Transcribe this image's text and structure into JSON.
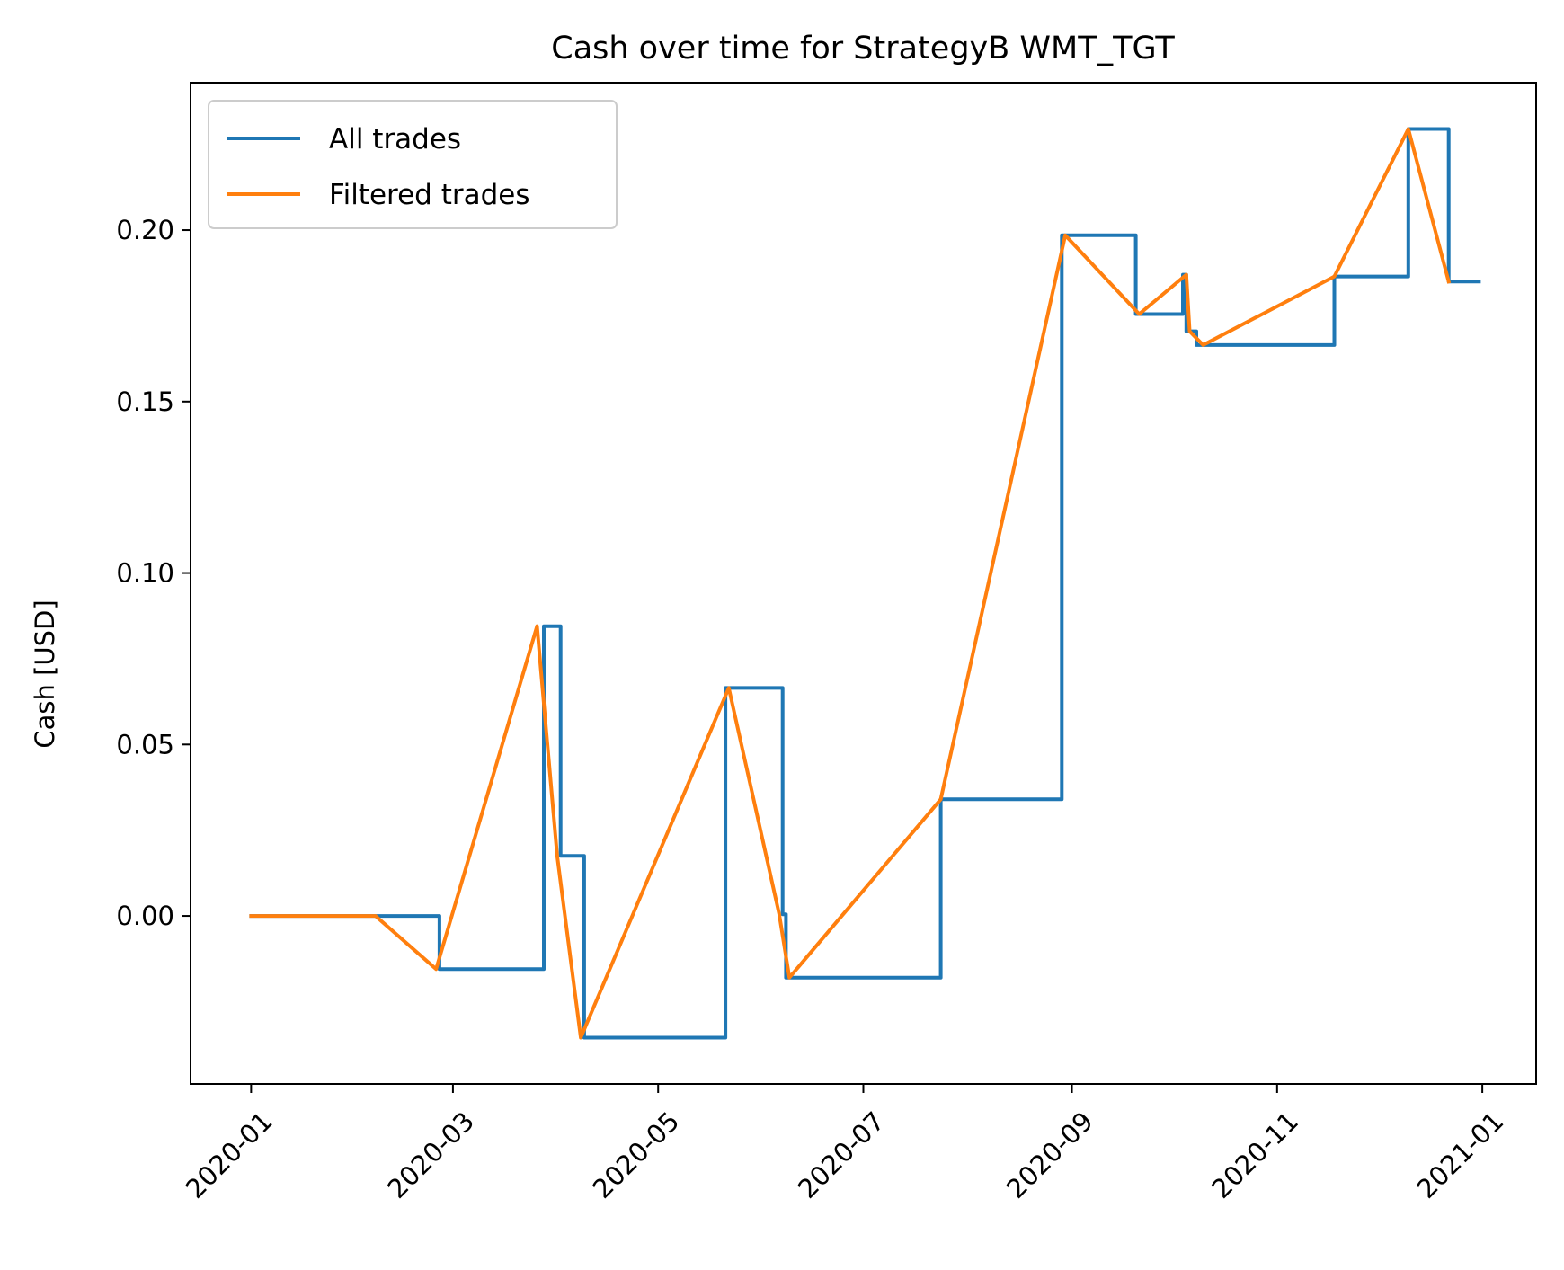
{
  "chart_data": {
    "type": "line",
    "title": "Cash over time for StrategyB WMT_TGT",
    "xlabel": "",
    "ylabel": "Cash [USD]",
    "xlim": [
      "2019-12-14",
      "2021-01-17"
    ],
    "ylim": [
      -0.049,
      0.243
    ],
    "x_ticks": [
      "2020-01",
      "2020-03",
      "2020-05",
      "2020-07",
      "2020-09",
      "2020-11",
      "2021-01"
    ],
    "y_ticks": [
      0.0,
      0.05,
      0.1,
      0.15,
      0.2
    ],
    "y_tick_labels": [
      "0.00",
      "0.05",
      "0.10",
      "0.15",
      "0.20"
    ],
    "grid": false,
    "legend_position": "top-left",
    "series": [
      {
        "name": "All trades",
        "color": "#1f77b4",
        "step": true,
        "points": [
          [
            "2020-01-01",
            0.0
          ],
          [
            "2020-02-25",
            0.0
          ],
          [
            "2020-02-26",
            -0.0155
          ],
          [
            "2020-03-27",
            -0.0155
          ],
          [
            "2020-03-28",
            0.0845
          ],
          [
            "2020-04-01",
            0.0845
          ],
          [
            "2020-04-02",
            0.0175
          ],
          [
            "2020-04-08",
            0.0175
          ],
          [
            "2020-04-09",
            -0.0355
          ],
          [
            "2020-05-20",
            -0.0355
          ],
          [
            "2020-05-21",
            0.0665
          ],
          [
            "2020-06-04",
            0.0665
          ],
          [
            "2020-06-07",
            0.0005
          ],
          [
            "2020-06-08",
            -0.018
          ],
          [
            "2020-07-23",
            -0.018
          ],
          [
            "2020-07-24",
            0.034
          ],
          [
            "2020-08-28",
            0.034
          ],
          [
            "2020-08-29",
            0.1985
          ],
          [
            "2020-09-19",
            0.1985
          ],
          [
            "2020-09-20",
            0.1755
          ],
          [
            "2020-10-03",
            0.1755
          ],
          [
            "2020-10-04",
            0.187
          ],
          [
            "2020-10-05",
            0.1705
          ],
          [
            "2020-10-08",
            0.1665
          ],
          [
            "2020-11-17",
            0.1665
          ],
          [
            "2020-11-18",
            0.1865
          ],
          [
            "2020-12-09",
            0.1865
          ],
          [
            "2020-12-10",
            0.2295
          ],
          [
            "2020-12-21",
            0.2295
          ],
          [
            "2020-12-22",
            0.185
          ],
          [
            "2020-12-31",
            0.185
          ]
        ]
      },
      {
        "name": "Filtered trades",
        "color": "#ff7f0e",
        "step": false,
        "points": [
          [
            "2020-01-01",
            0.0
          ],
          [
            "2020-02-07",
            0.0
          ],
          [
            "2020-02-25",
            -0.0155
          ],
          [
            "2020-03-26",
            0.0845
          ],
          [
            "2020-04-01",
            0.0175
          ],
          [
            "2020-04-08",
            -0.0355
          ],
          [
            "2020-05-22",
            0.0665
          ],
          [
            "2020-06-06",
            0.0005
          ],
          [
            "2020-06-09",
            -0.018
          ],
          [
            "2020-07-24",
            0.034
          ],
          [
            "2020-08-30",
            0.1985
          ],
          [
            "2020-09-21",
            0.1755
          ],
          [
            "2020-10-05",
            0.187
          ],
          [
            "2020-10-06",
            0.1705
          ],
          [
            "2020-10-10",
            0.1665
          ],
          [
            "2020-11-18",
            0.1865
          ],
          [
            "2020-12-10",
            0.2295
          ],
          [
            "2020-12-22",
            0.185
          ]
        ]
      }
    ]
  }
}
